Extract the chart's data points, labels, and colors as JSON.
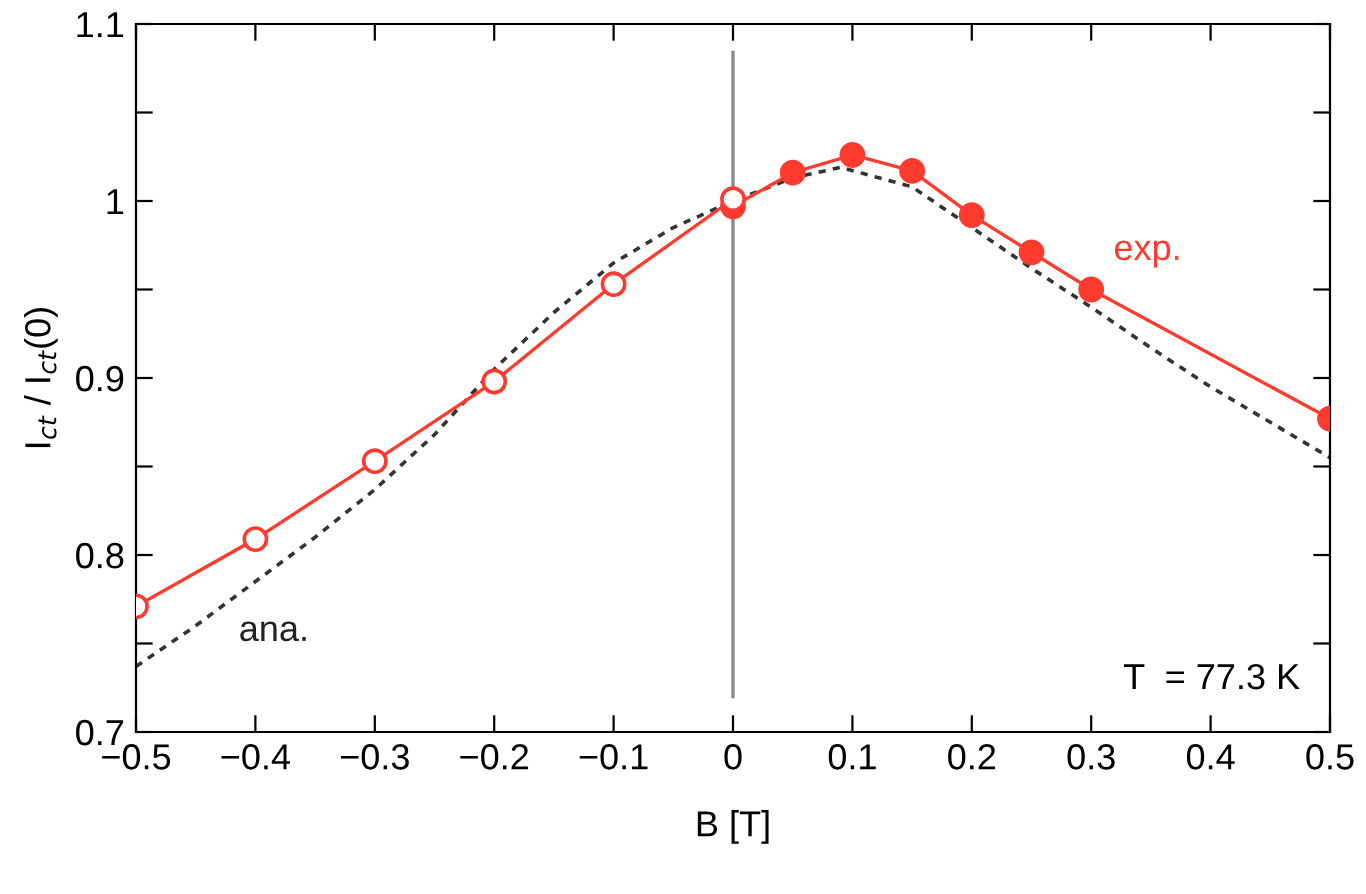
{
  "chart_data": {
    "type": "line",
    "xlabel": "B [T]",
    "ylabel": "I$_{ct}$ / I$_{ct}$(0)",
    "xlim": [
      -0.5,
      0.5
    ],
    "ylim": [
      0.7,
      1.1
    ],
    "xticks": [
      {
        "value": -0.5,
        "label": "−0.5"
      },
      {
        "value": -0.4,
        "label": "−0.4"
      },
      {
        "value": -0.3,
        "label": "−0.3"
      },
      {
        "value": -0.2,
        "label": "−0.2"
      },
      {
        "value": -0.1,
        "label": "−0.1"
      },
      0,
      0.1,
      0.2,
      0.3,
      0.4,
      0.5
    ],
    "yticks": [
      0.7,
      {
        "value": 0.75,
        "label": null
      },
      0.8,
      {
        "value": 0.85,
        "label": null
      },
      0.9,
      {
        "value": 0.95,
        "label": null
      },
      1,
      {
        "value": 1.05,
        "label": null
      },
      1.1
    ],
    "grid": false,
    "legend": false,
    "marker": "circle",
    "series": [
      {
        "color": "#ff3b2f",
        "x": [
          -0.5,
          -0.4,
          -0.3,
          -0.2,
          -0.1,
          0
        ],
        "values": [
          0.771,
          0.809,
          0.853,
          0.898,
          0.953,
          1.001
        ]
      },
      {
        "name": "exp.",
        "color": "#ff3b2f",
        "x": [
          0,
          0.05,
          0.1,
          0.15,
          0.2,
          0.25,
          0.3,
          0.5
        ],
        "values": [
          0.997,
          1.016,
          1.026,
          1.017,
          0.992,
          0.971,
          0.95,
          0.877
        ]
      },
      {
        "name": "ana.",
        "color": "#333333",
        "line_style": "dotted",
        "marker": "none",
        "x": [
          -0.5,
          -0.45,
          -0.4,
          -0.35,
          -0.3,
          -0.25,
          -0.2,
          -0.15,
          -0.1,
          -0.05,
          0,
          0.05,
          0.09,
          0.15,
          0.2,
          0.25,
          0.3,
          0.35,
          0.4,
          0.45,
          0.5
        ],
        "values": [
          0.737,
          0.76,
          0.785,
          0.81,
          0.837,
          0.868,
          0.905,
          0.937,
          0.965,
          0.985,
          1.0,
          1.013,
          1.019,
          1.008,
          0.985,
          0.962,
          0.94,
          0.917,
          0.895,
          0.875,
          0.855
        ]
      }
    ],
    "ref_lines": [
      {
        "axis": "x",
        "value": 0,
        "color": "#888888"
      }
    ],
    "annotations": [
      "T  = 77.3 K"
    ]
  }
}
